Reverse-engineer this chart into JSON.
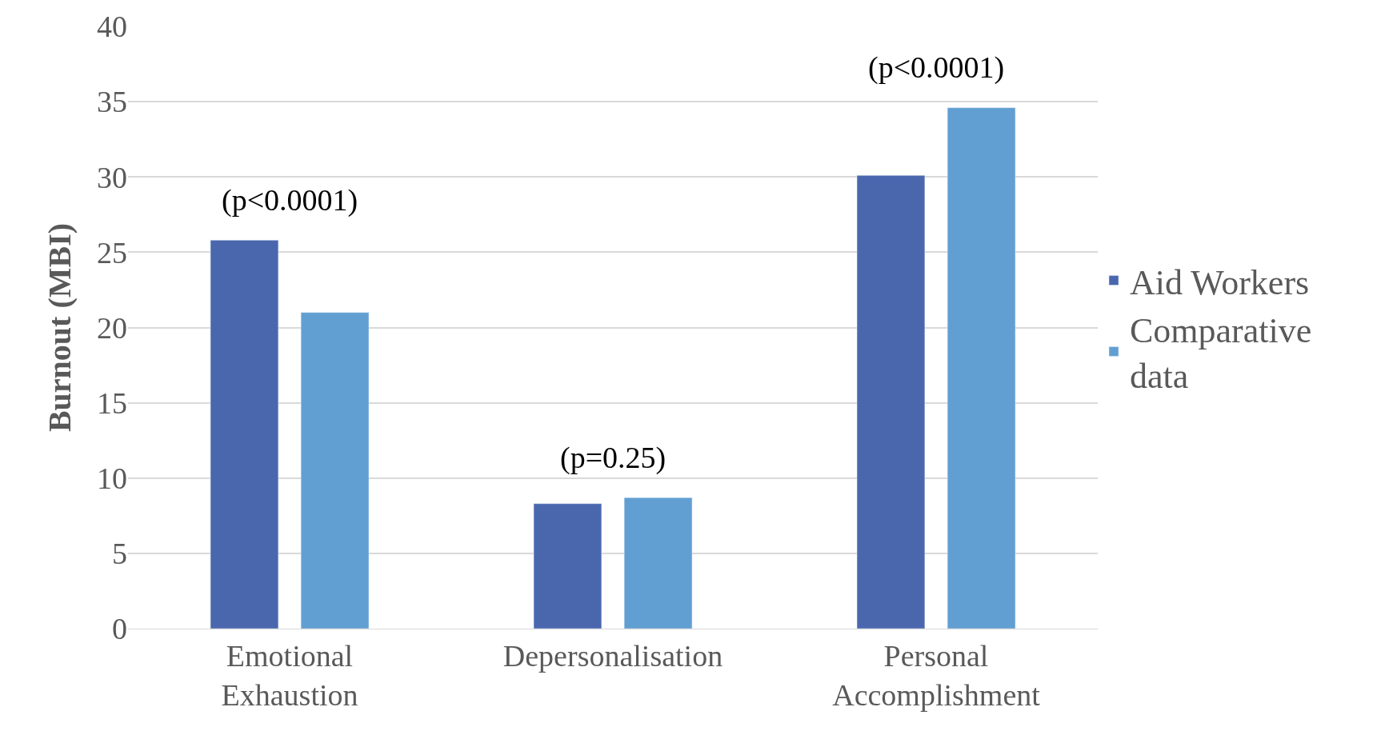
{
  "chart_data": {
    "type": "bar",
    "ylabel": "Burnout (MBI)",
    "categories": [
      "Emotional\nExhaustion",
      "Depersonalisation",
      "Personal\nAccomplishment"
    ],
    "series": [
      {
        "name": "Aid Workers",
        "color": "#4a67ae",
        "values": [
          25.8,
          8.3,
          30.1
        ]
      },
      {
        "name": "Comparative\ndata",
        "color": "#619fd2",
        "values": [
          21.0,
          8.7,
          34.6
        ]
      }
    ],
    "ylim": [
      0,
      40
    ],
    "yticks": [
      0,
      5,
      10,
      15,
      20,
      25,
      30,
      35,
      40
    ],
    "grid": "y",
    "legend": "right",
    "annotations": [
      "(p<0.0001)",
      "(p=0.25)",
      "(p<0.0001)"
    ]
  }
}
